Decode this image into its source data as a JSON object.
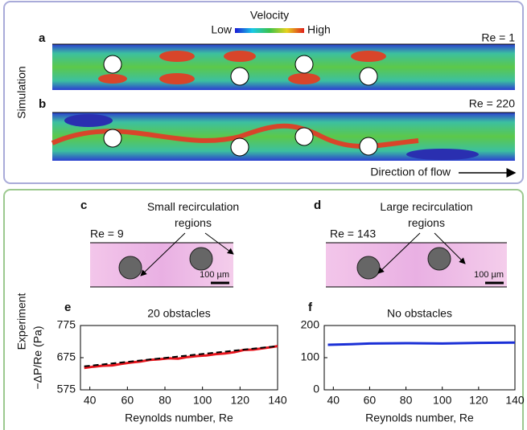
{
  "simulation": {
    "side_label": "Simulation",
    "colorbar_title": "Velocity",
    "colorbar_low": "Low",
    "colorbar_high": "High",
    "panel_a": {
      "label": "a",
      "re": "Re = 1"
    },
    "panel_b": {
      "label": "b",
      "re": "Re = 220"
    },
    "flow_label": "Direction of flow"
  },
  "experiment": {
    "side_label": "Experiment",
    "panel_c": {
      "label": "c",
      "note": [
        "Small recirculation",
        "regions"
      ],
      "re": "Re = 9",
      "scale": "100 µm"
    },
    "panel_d": {
      "label": "d",
      "note": [
        "Large recirculation",
        "regions"
      ],
      "re": "Re = 143",
      "scale": "100 µm"
    }
  },
  "chart_data": [
    {
      "type": "line",
      "label": "e",
      "title": "20 obstacles",
      "xlabel": "Reynolds number, Re",
      "ylabel": "−ΔP/Re (Pa)",
      "xlim": [
        35,
        140
      ],
      "xticks": [
        40,
        60,
        80,
        100,
        120,
        140
      ],
      "ylim": [
        575,
        775
      ],
      "yticks": [
        575,
        675,
        775
      ],
      "series": [
        {
          "color": "#e8141c",
          "style": "solid",
          "x": [
            37,
            42,
            47,
            52,
            57,
            62,
            67,
            72,
            77,
            82,
            87,
            92,
            97,
            102,
            107,
            112,
            117,
            122,
            127,
            132,
            137,
            140
          ],
          "values": [
            643,
            647,
            650,
            651,
            656,
            660,
            663,
            668,
            670,
            673,
            672,
            677,
            680,
            682,
            686,
            688,
            692,
            699,
            700,
            704,
            708,
            711
          ]
        },
        {
          "color": "#000000",
          "style": "dashed",
          "x": [
            37,
            140
          ],
          "values": [
            648,
            711
          ]
        }
      ]
    },
    {
      "type": "line",
      "label": "f",
      "title": "No obstacles",
      "xlabel": "Reynolds number, Re",
      "xlim": [
        35,
        140
      ],
      "xticks": [
        40,
        60,
        80,
        100,
        120,
        140
      ],
      "ylim": [
        0,
        200
      ],
      "yticks": [
        0,
        100,
        200
      ],
      "series": [
        {
          "color": "#1a2fd6",
          "style": "solid",
          "x": [
            37,
            50,
            60,
            80,
            100,
            120,
            140
          ],
          "values": [
            140,
            142,
            144,
            145,
            144,
            146,
            147
          ]
        }
      ]
    }
  ]
}
